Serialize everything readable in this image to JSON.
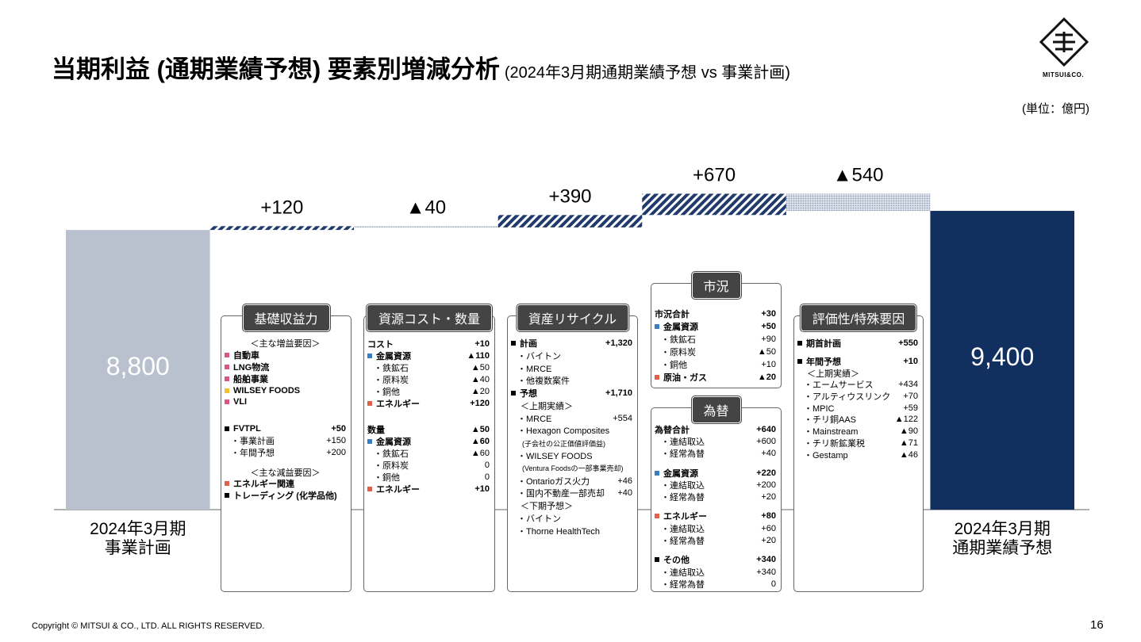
{
  "header": {
    "title": "当期利益 (通期業績予想) 要素別増減分析",
    "subtitle": "(2024年3月期通期業績予想 vs 事業計画)",
    "unit": "(単位：億円)",
    "logo": "MITSUI&CO."
  },
  "footer": {
    "copyright": "Copyright © MITSUI & CO., LTD. ALL RIGHTS RESERVED.",
    "page": "16"
  },
  "chart_data": {
    "type": "waterfall",
    "categories": [
      "2024年3月期\n事業計画",
      null,
      null,
      null,
      null,
      null,
      "2024年3月期\n通期業績予想"
    ],
    "values": [
      8800,
      120,
      -40,
      390,
      670,
      -540,
      9400
    ],
    "value_labels": [
      "8,800",
      "+120",
      "▲40",
      "+390",
      "+670",
      "▲540",
      "9,400"
    ],
    "measure": [
      "absolute",
      "relative",
      "relative",
      "relative",
      "relative",
      "relative",
      "total"
    ],
    "ylim": [
      0,
      10000
    ],
    "start_color": "#b9c1cf",
    "end_color": "#12305f",
    "increase_color": "#1f3a6b",
    "decrease_color": "#8d9ab4"
  },
  "panels": [
    {
      "title": "基礎収益力",
      "rows": [
        {
          "text": "＜主な増益要因＞"
        },
        {
          "text": "自動車",
          "bullet": "#d9577f"
        },
        {
          "text": "LNG物流",
          "bullet": "#d9577f"
        },
        {
          "text": "船舶事業",
          "bullet": "#d9577f"
        },
        {
          "text": "WILSEY FOODS",
          "bullet": "#f2c12e"
        },
        {
          "text": "VLI",
          "bullet": "#d9577f"
        },
        {
          "text": "FVTPL",
          "value": "+50",
          "bullet": "#000000"
        },
        {
          "text": "・事業計画",
          "value": "+150"
        },
        {
          "text": "・年間予想",
          "value": "+200"
        },
        {
          "text": "＜主な減益要因＞"
        },
        {
          "text": "エネルギー関連",
          "bullet": "#e0604a"
        },
        {
          "text": "トレーディング (化学品他)",
          "bullet": "#000000"
        }
      ]
    },
    {
      "title": "資源コスト・数量",
      "rows": [
        {
          "text": "コスト",
          "value": "+10",
          "bold": true
        },
        {
          "text": "金属資源",
          "value": "▲110",
          "bullet": "#3b7dc4"
        },
        {
          "text": "・鉄鉱石",
          "value": "▲50"
        },
        {
          "text": "・原料炭",
          "value": "▲40"
        },
        {
          "text": "・銅他",
          "value": "▲20"
        },
        {
          "text": "エネルギー",
          "value": "+120",
          "bullet": "#e0604a"
        },
        {
          "text": "数量",
          "value": "▲50",
          "bold": true
        },
        {
          "text": "金属資源",
          "value": "▲60",
          "bullet": "#3b7dc4"
        },
        {
          "text": "・鉄鉱石",
          "value": "▲60"
        },
        {
          "text": "・原料炭",
          "value": "0"
        },
        {
          "text": "・銅他",
          "value": "0"
        },
        {
          "text": "エネルギー",
          "value": "+10",
          "bullet": "#e0604a"
        }
      ]
    },
    {
      "title": "資産リサイクル",
      "rows": [
        {
          "text": "計画",
          "value": "+1,320",
          "bullet": "#000000"
        },
        {
          "text": "・バイトン"
        },
        {
          "text": "・MRCE"
        },
        {
          "text": "・他複数案件"
        },
        {
          "text": "予想",
          "value": "+1,710",
          "bullet": "#000000"
        },
        {
          "text": "＜上期実績＞"
        },
        {
          "text": "・MRCE",
          "value": "+554"
        },
        {
          "text": "・Hexagon Composites"
        },
        {
          "text": "(子会社の公正価値評価益)"
        },
        {
          "text": "・WILSEY FOODS"
        },
        {
          "text": "(Ventura Foodsの一部事業売却)"
        },
        {
          "text": "・Ontarioガス火力",
          "value": "+46"
        },
        {
          "text": "・国内不動産一部売却",
          "value": "+40"
        },
        {
          "text": "＜下期予想＞"
        },
        {
          "text": "・バイトン"
        },
        {
          "text": "・Thorne HealthTech"
        }
      ]
    },
    {
      "title": "市況",
      "rows": [
        {
          "text": "市況合計",
          "value": "+30",
          "bold": true
        },
        {
          "text": "金属資源",
          "value": "+50",
          "bullet": "#3b7dc4"
        },
        {
          "text": "・鉄鉱石",
          "value": "+90"
        },
        {
          "text": "・原料炭",
          "value": "▲50"
        },
        {
          "text": "・銅他",
          "value": "+10"
        },
        {
          "text": "原油・ガス",
          "value": "▲20",
          "bullet": "#e0604a"
        }
      ]
    },
    {
      "title": "為替",
      "rows": [
        {
          "text": "為替合計",
          "value": "+640",
          "bold": true
        },
        {
          "text": "・連結取込",
          "value": "+600"
        },
        {
          "text": "・経常為替",
          "value": "+40"
        },
        {
          "text": "金属資源",
          "value": "+220",
          "bullet": "#3b7dc4"
        },
        {
          "text": "・連結取込",
          "value": "+200"
        },
        {
          "text": "・経常為替",
          "value": "+20"
        },
        {
          "text": "エネルギー",
          "value": "+80",
          "bullet": "#e0604a"
        },
        {
          "text": "・連結取込",
          "value": "+60"
        },
        {
          "text": "・経常為替",
          "value": "+20"
        },
        {
          "text": "その他",
          "value": "+340",
          "bullet": "#000000"
        },
        {
          "text": "・連結取込",
          "value": "+340"
        },
        {
          "text": "・経常為替",
          "value": "0"
        }
      ]
    },
    {
      "title": "評価性/特殊要因",
      "rows": [
        {
          "text": "期首計画",
          "value": "+550",
          "bullet": "#000000"
        },
        {
          "text": "年間予想",
          "value": "+10",
          "bullet": "#000000"
        },
        {
          "text": "＜上期実績＞"
        },
        {
          "text": "・エームサービス",
          "value": "+434"
        },
        {
          "text": "・アルティウスリンク",
          "value": "+70"
        },
        {
          "text": "・MPIC",
          "value": "+59"
        },
        {
          "text": "・チリ銅AAS",
          "value": "▲122"
        },
        {
          "text": "・Mainstream",
          "value": "▲90"
        },
        {
          "text": "・チリ新鉱業税",
          "value": "▲71"
        },
        {
          "text": "・Gestamp",
          "value": "▲46"
        }
      ]
    }
  ]
}
